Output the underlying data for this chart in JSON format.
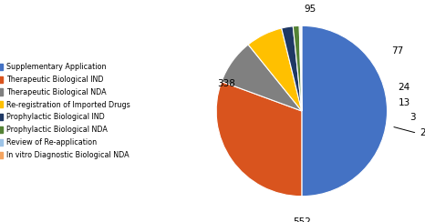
{
  "labels": [
    "Supplementary Application",
    "Therapeutic Biological IND",
    "Therapeutic Biological NDA",
    "Re-registration of Imported Drugs",
    "Prophylactic Biological IND",
    "Prophylactic Biological NDA",
    "Review of Re-application",
    "In vitro Diagnostic Biological NDA"
  ],
  "values": [
    552,
    338,
    95,
    77,
    24,
    13,
    3,
    2
  ],
  "colors": [
    "#4472C4",
    "#D9541E",
    "#808080",
    "#FFC000",
    "#1F3864",
    "#548235",
    "#9DC3E6",
    "#F4A460"
  ],
  "legend_colors": [
    "#4472C4",
    "#D9541E",
    "#808080",
    "#FFC000",
    "#1F3864",
    "#548235",
    "#9DC3E6",
    "#F4A460"
  ],
  "figsize": [
    4.66,
    2.44
  ],
  "dpi": 100
}
